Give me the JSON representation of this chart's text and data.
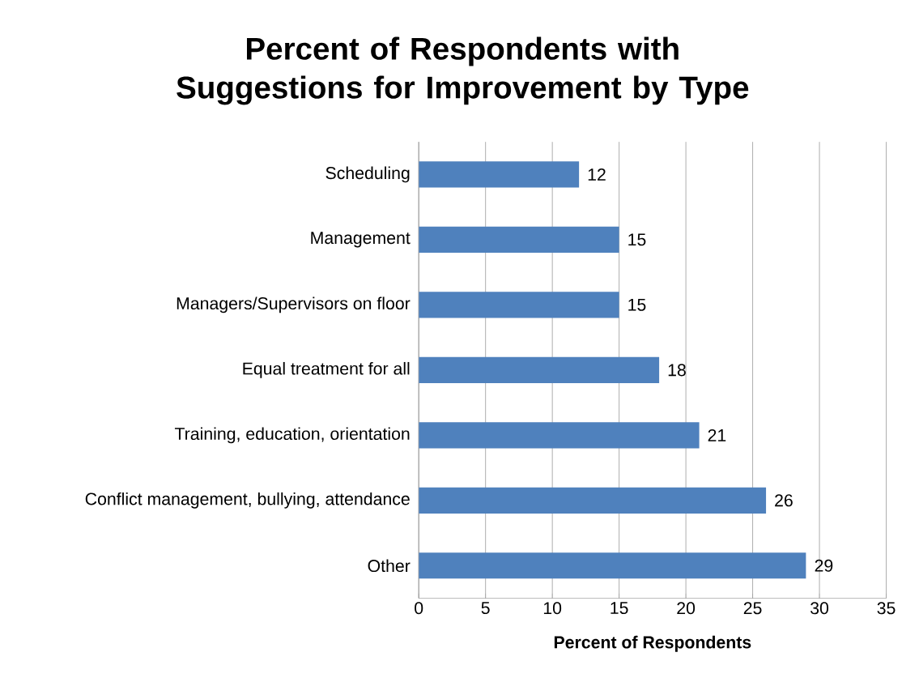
{
  "chart_data": {
    "type": "bar",
    "orientation": "horizontal",
    "title": "Percent of Respondents with Suggestions for Improvement by Type",
    "xlabel": "Percent of Respondents",
    "categories": [
      "Scheduling",
      "Management",
      "Managers/Supervisors on floor",
      "Equal treatment for all",
      "Training, education, orientation",
      "Conflict management, bullying, attendance",
      "Other"
    ],
    "values": [
      12,
      15,
      15,
      18,
      21,
      26,
      29
    ],
    "color": "#4f81bd",
    "xlim": [
      0,
      35
    ],
    "xticks": [
      0,
      5,
      10,
      15,
      20,
      25,
      30,
      35
    ],
    "grid": "x",
    "data_labels": true
  }
}
